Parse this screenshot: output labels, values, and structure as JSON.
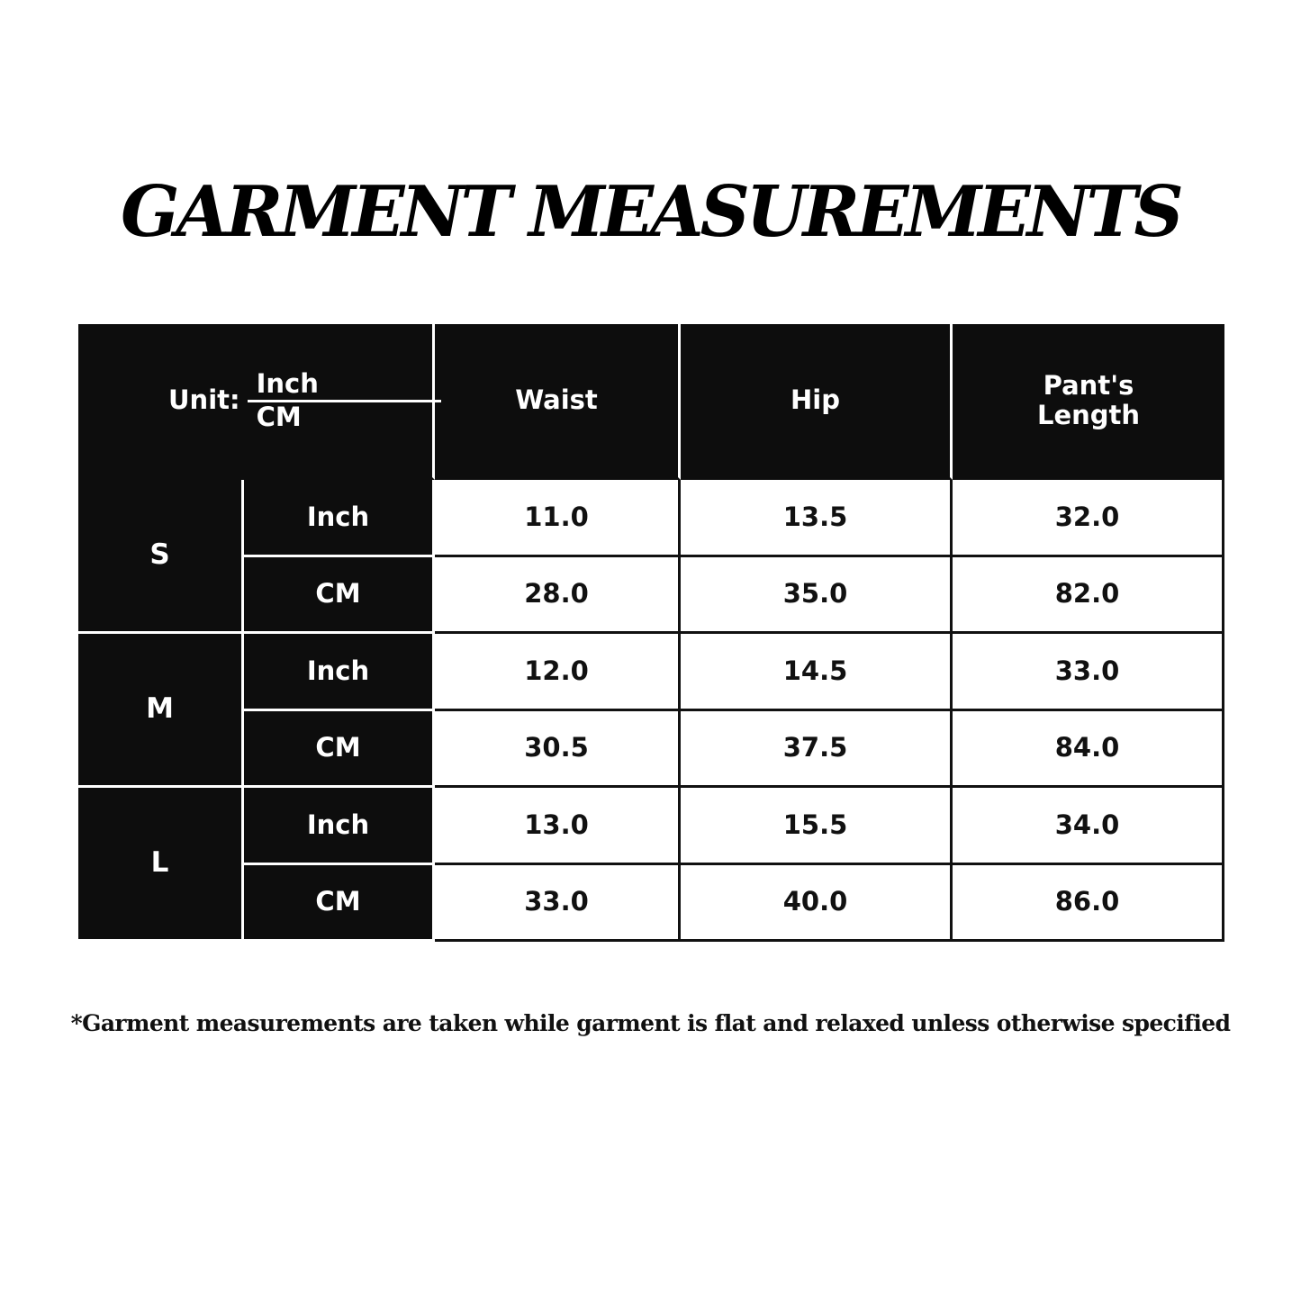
{
  "title": "GARMENT MEASUREMENTS",
  "table": {
    "unit_label": "Unit:",
    "unit_top": "Inch",
    "unit_bottom": "CM",
    "headers": [
      "Waist",
      "Hip",
      "Pant's Length"
    ],
    "rows": [
      {
        "size": "S",
        "units": [
          {
            "unit": "Inch",
            "values": [
              "11.0",
              "13.5",
              "32.0"
            ]
          },
          {
            "unit": "CM",
            "values": [
              "28.0",
              "35.0",
              "82.0"
            ]
          }
        ]
      },
      {
        "size": "M",
        "units": [
          {
            "unit": "Inch",
            "values": [
              "12.0",
              "14.5",
              "33.0"
            ]
          },
          {
            "unit": "CM",
            "values": [
              "30.5",
              "37.5",
              "84.0"
            ]
          }
        ]
      },
      {
        "size": "L",
        "units": [
          {
            "unit": "Inch",
            "values": [
              "13.0",
              "15.5",
              "34.0"
            ]
          },
          {
            "unit": "CM",
            "values": [
              "33.0",
              "40.0",
              "86.0"
            ]
          }
        ]
      }
    ]
  },
  "footnote": "*Garment measurements are taken while garment is flat and relaxed unless otherwise specified"
}
